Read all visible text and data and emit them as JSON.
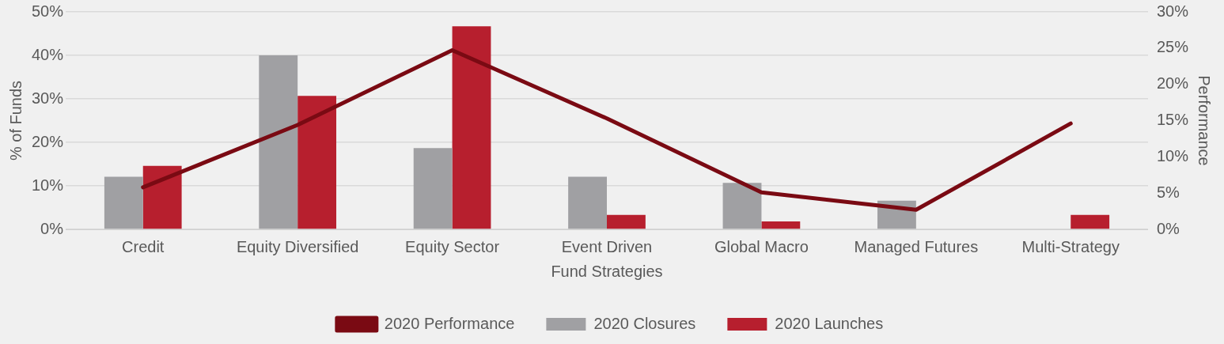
{
  "chart_data": {
    "type": "bar",
    "xlabel": "Fund Strategies",
    "ylabel": "% of Funds",
    "y2label": "Performance",
    "categories": [
      "Credit",
      "Equity Diversified",
      "Equity Sector",
      "Event Driven",
      "Global Macro",
      "Managed Futures",
      "Multi-Strategy"
    ],
    "series": [
      {
        "name": "2020 Closures",
        "color": "#a0a0a3",
        "values": [
          12.1,
          40,
          18.7,
          12.1,
          10.7,
          6.6,
          null
        ]
      },
      {
        "name": "2020 Launches",
        "color": "#b71f2e",
        "values": [
          14.6,
          30.7,
          46.7,
          3.3,
          1.8,
          null,
          3.3
        ]
      },
      {
        "name": "2020 Performance",
        "type": "line",
        "axis": "y2",
        "color": "#7a0a13",
        "values": [
          5.8,
          14.4,
          24.7,
          15.3,
          5.1,
          2.7,
          14.6
        ]
      }
    ],
    "ylim": [
      0,
      50
    ],
    "yticks": [
      {
        "value": 0,
        "label": "0%"
      },
      {
        "value": 10,
        "label": "10%"
      },
      {
        "value": 20,
        "label": "20%"
      },
      {
        "value": 30,
        "label": "30%"
      },
      {
        "value": 40,
        "label": "40%"
      },
      {
        "value": 50,
        "label": "50%"
      }
    ],
    "y2lim": [
      0,
      30
    ],
    "y2ticks": [
      {
        "value": 0,
        "label": "0%"
      },
      {
        "value": 5,
        "label": "5%"
      },
      {
        "value": 10,
        "label": "10%"
      },
      {
        "value": 15,
        "label": "15%"
      },
      {
        "value": 20,
        "label": "20%"
      },
      {
        "value": 25,
        "label": "25%"
      },
      {
        "value": 30,
        "label": "30%"
      }
    ],
    "grid": "y",
    "legend": "bottom",
    "marker": "none",
    "line_style": "solid"
  }
}
